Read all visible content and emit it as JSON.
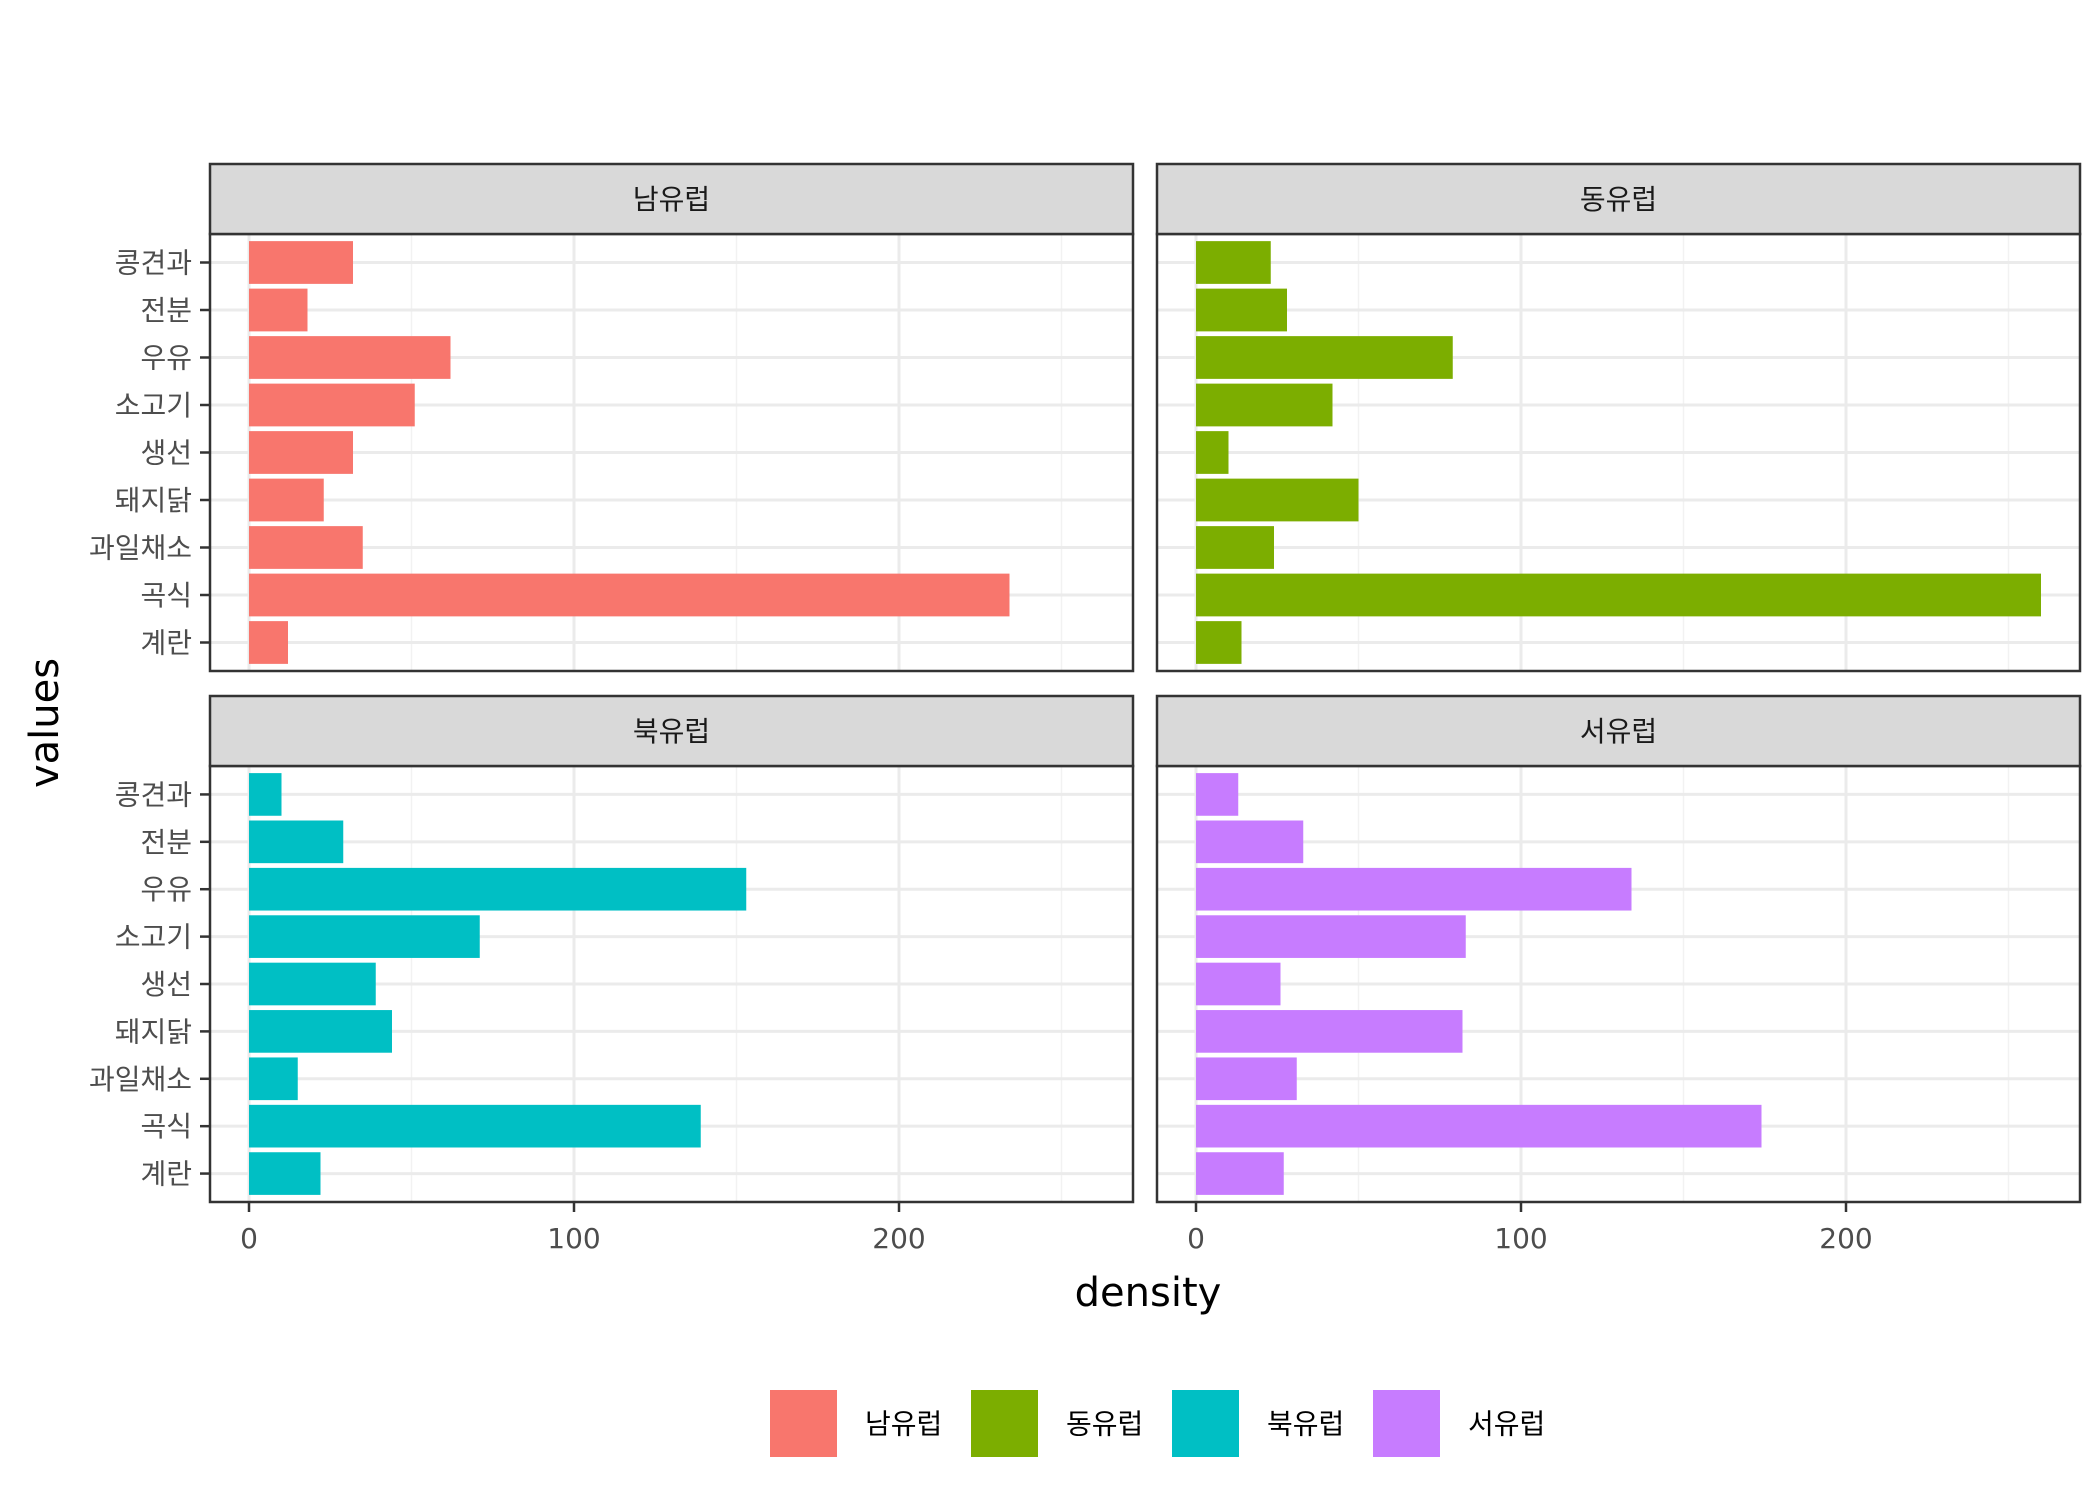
{
  "chart_data": {
    "type": "bar",
    "orientation": "horizontal",
    "xlabel": "density",
    "ylabel": "values",
    "xlim": [
      -12,
      272
    ],
    "x_ticks": [
      0,
      100,
      200
    ],
    "grid": true,
    "legend_position": "bottom",
    "categories": [
      "콩견과",
      "전분",
      "우유",
      "소고기",
      "생선",
      "돼지닭",
      "과일채소",
      "곡식",
      "계란"
    ],
    "panels": [
      {
        "name": "남유럽",
        "color": "#F8766D",
        "values": [
          32,
          18,
          62,
          51,
          32,
          23,
          35,
          234,
          12
        ]
      },
      {
        "name": "동유럽",
        "color": "#7CAE00",
        "values": [
          23,
          28,
          79,
          42,
          10,
          50,
          24,
          260,
          14
        ]
      },
      {
        "name": "북유럽",
        "color": "#00BFC4",
        "values": [
          10,
          29,
          153,
          71,
          39,
          44,
          15,
          139,
          22
        ]
      },
      {
        "name": "서유럽",
        "color": "#C77CFF",
        "values": [
          13,
          33,
          134,
          83,
          26,
          82,
          31,
          174,
          27
        ]
      }
    ],
    "legend": [
      {
        "label": "남유럽",
        "color": "#F8766D"
      },
      {
        "label": "동유럽",
        "color": "#7CAE00"
      },
      {
        "label": "북유럽",
        "color": "#00BFC4"
      },
      {
        "label": "서유럽",
        "color": "#C77CFF"
      }
    ]
  }
}
